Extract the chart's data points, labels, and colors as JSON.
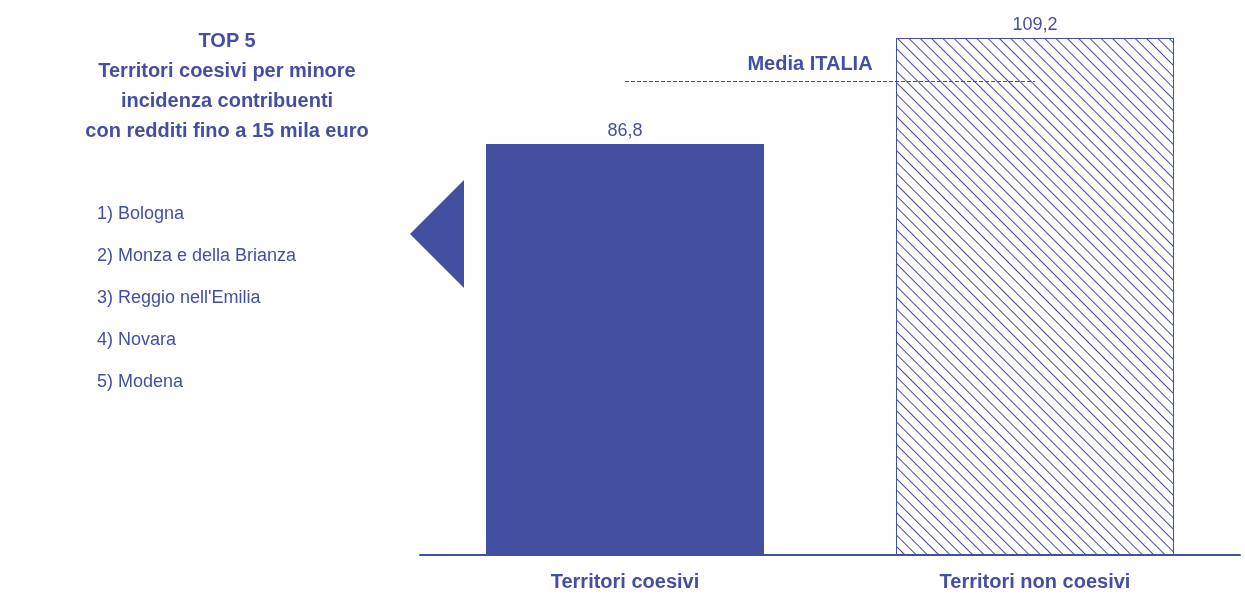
{
  "chart_data": {
    "type": "bar",
    "title": "TOP 5\nTerritori coesivi per minore\nincidenza contribuenti\ncon redditi fino a 15 mila euro",
    "categories": [
      "Territori coesivi",
      "Territori non coesivi"
    ],
    "values": [
      86.8,
      109.2
    ],
    "colors": [
      "#434fa0",
      "#434fa0"
    ],
    "value_labels": [
      "86,8",
      "109,2"
    ],
    "tick_labels": "x",
    "grid": false,
    "ref_lines": [
      {
        "axis": "y",
        "value": 100,
        "label": "Media ITALIA",
        "color": "#434fa0",
        "line_style": "dashed"
      }
    ],
    "annotations": [
      "1) Bologna",
      "2) Monza e della Brianza",
      "3) Reggio nell'Emilia",
      "4) Novara",
      "5) Modena"
    ]
  }
}
